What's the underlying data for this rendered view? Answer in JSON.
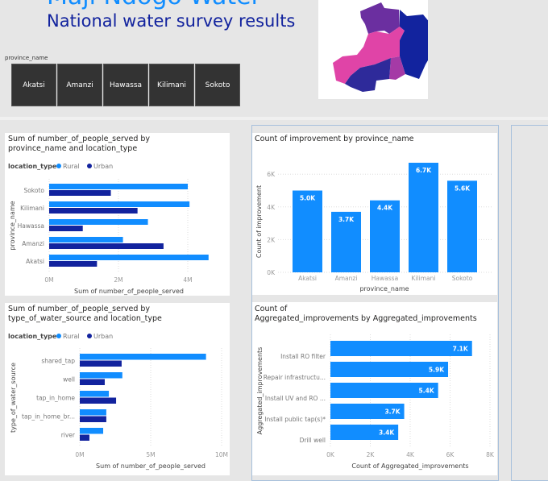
{
  "header": {
    "title": "Maji Ndogo Water",
    "subtitle": "National water survey results"
  },
  "slicer": {
    "label": "province_name",
    "options": [
      "Akatsi",
      "Amanzi",
      "Hawassa",
      "Kilimani",
      "Sokoto"
    ]
  },
  "colors": {
    "rural": "#118dff",
    "urban": "#12239e",
    "background": "#e6e6e6",
    "slicer": "#333333",
    "map": [
      "#6b2fa0",
      "#e044a7",
      "#12239e",
      "#2e2a9a",
      "#a53aa6"
    ]
  },
  "chart_data": [
    {
      "id": "people_by_province",
      "type": "bar",
      "orientation": "horizontal",
      "title": "Sum of number_of_people_served by province_name and location_type",
      "legend_title": "location_type",
      "legend_position": "top-left",
      "categories": [
        "Sokoto",
        "Kilimani",
        "Hawassa",
        "Amanzi",
        "Akatsi"
      ],
      "series": [
        {
          "name": "Rural",
          "values": [
            4.0,
            4.05,
            2.85,
            2.13,
            4.6
          ]
        },
        {
          "name": "Urban",
          "values": [
            1.78,
            2.55,
            0.97,
            3.3,
            1.38
          ]
        }
      ],
      "xlabel": "Sum of number_of_people_served",
      "ylabel": "province_name",
      "xticks": [
        "0M",
        "2M",
        "4M"
      ],
      "xlim": [
        0,
        4.7
      ],
      "unit": "M",
      "grid": true
    },
    {
      "id": "improvements_by_province",
      "type": "bar",
      "orientation": "vertical",
      "title": "Count of improvement by province_name",
      "categories": [
        "Akatsi",
        "Amanzi",
        "Hawassa",
        "Kilimani",
        "Sokoto"
      ],
      "values": [
        5.0,
        3.7,
        4.4,
        6.7,
        5.6
      ],
      "data_labels": [
        "5.0K",
        "3.7K",
        "4.4K",
        "6.7K",
        "5.6K"
      ],
      "xlabel": "province_name",
      "ylabel": "Count of improvement",
      "yticks": [
        "0K",
        "2K",
        "4K",
        "6K"
      ],
      "ylim": [
        0,
        6.9
      ],
      "unit": "K",
      "grid": true
    },
    {
      "id": "people_by_source",
      "type": "bar",
      "orientation": "horizontal",
      "title": "Sum of number_of_people_served by type_of_water_source and location_type",
      "legend_title": "location_type",
      "legend_position": "top-left",
      "categories": [
        "shared_tap",
        "well",
        "tap_in_home",
        "tap_in_home_br...",
        "river"
      ],
      "series": [
        {
          "name": "Rural",
          "values": [
            8.9,
            3.0,
            2.05,
            1.87,
            1.65
          ]
        },
        {
          "name": "Urban",
          "values": [
            2.95,
            1.76,
            2.56,
            1.87,
            0.68
          ]
        }
      ],
      "xlabel": "Sum of number_of_people_served",
      "ylabel": "type_of_water_source",
      "xticks": [
        "0M",
        "5M",
        "10M"
      ],
      "xlim": [
        0,
        10
      ],
      "unit": "M",
      "grid": true
    },
    {
      "id": "aggregated_improvements",
      "type": "bar",
      "orientation": "horizontal",
      "title": "Count of Aggregated_improvements by Aggregated_improvements",
      "categories": [
        "Install RO filter",
        "Repair infrastructu...",
        "Install UV and RO ...",
        "Install public tap(s)*",
        "Drill well"
      ],
      "values": [
        7.1,
        5.9,
        5.4,
        3.7,
        3.4
      ],
      "data_labels": [
        "7.1K",
        "5.9K",
        "5.4K",
        "3.7K",
        "3.4K"
      ],
      "xlabel": "Count of Aggregated_improvements",
      "ylabel": "Aggregated_improvements",
      "xticks": [
        "0K",
        "2K",
        "4K",
        "6K",
        "8K"
      ],
      "xlim": [
        0,
        8
      ],
      "unit": "K",
      "grid": true
    }
  ]
}
